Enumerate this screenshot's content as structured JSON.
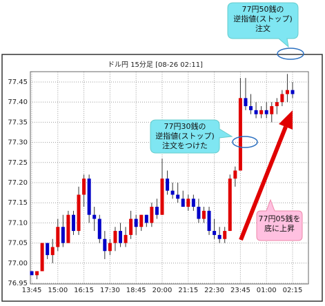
{
  "chart_data": {
    "type": "candlestick",
    "title": "ドル円 15分足 [08-26 02:11]",
    "categories": [
      "13:45",
      null,
      null,
      null,
      null,
      "15:00",
      null,
      null,
      null,
      null,
      "16:15",
      null,
      null,
      null,
      null,
      "17:30",
      null,
      null,
      null,
      null,
      "18:45",
      null,
      null,
      null,
      null,
      "20:00",
      null,
      null,
      null,
      null,
      "21:15",
      null,
      null,
      null,
      null,
      "22:30",
      null,
      null,
      null,
      null,
      "23:45",
      null,
      null,
      null,
      null,
      "01:00",
      null,
      null,
      null,
      null,
      "02:15"
    ],
    "open": [
      76.98,
      76.97,
      76.98,
      77.05,
      77.02,
      77.04,
      77.09,
      77.05,
      77.12,
      77.08,
      77.17,
      77.21,
      77.12,
      77.11,
      77.06,
      77.03,
      77.05,
      77.08,
      77.05,
      77.07,
      77.11,
      77.09,
      77.12,
      77.1,
      77.14,
      77.12,
      77.21,
      77.18,
      77.17,
      77.16,
      77.14,
      77.16,
      77.14,
      77.11,
      77.13,
      77.08,
      77.07,
      77.06,
      77.08,
      77.21,
      77.23,
      77.41,
      77.39,
      77.38,
      77.37,
      77.38,
      77.37,
      77.39,
      77.4,
      77.42,
      77.43
    ],
    "high": [
      76.98,
      76.98,
      77.05,
      77.05,
      77.06,
      77.11,
      77.12,
      77.13,
      77.13,
      77.19,
      77.22,
      77.22,
      77.14,
      77.12,
      77.08,
      77.06,
      77.09,
      77.1,
      77.09,
      77.13,
      77.12,
      77.12,
      77.12,
      77.15,
      77.16,
      77.26,
      77.23,
      77.2,
      77.2,
      77.18,
      77.17,
      77.17,
      77.16,
      77.14,
      77.14,
      77.11,
      77.09,
      77.09,
      77.22,
      77.24,
      77.46,
      77.46,
      77.42,
      77.4,
      77.39,
      77.4,
      77.4,
      77.41,
      77.43,
      77.47,
      77.45
    ],
    "low": [
      76.97,
      76.96,
      76.98,
      77.01,
      77.0,
      77.03,
      77.04,
      77.05,
      77.07,
      77.07,
      77.14,
      77.1,
      77.08,
      77.05,
      77.01,
      77.02,
      77.03,
      77.04,
      77.04,
      77.06,
      77.07,
      77.08,
      77.09,
      77.09,
      77.11,
      77.12,
      77.17,
      77.16,
      77.15,
      77.14,
      77.13,
      77.13,
      77.1,
      77.1,
      77.07,
      77.06,
      77.05,
      77.05,
      77.08,
      77.19,
      77.23,
      77.38,
      77.37,
      77.36,
      77.36,
      77.36,
      77.35,
      77.37,
      77.39,
      77.4,
      77.41
    ],
    "close": [
      76.97,
      76.98,
      77.05,
      77.02,
      77.04,
      77.09,
      77.05,
      77.12,
      77.08,
      77.17,
      77.21,
      77.12,
      77.11,
      77.06,
      77.03,
      77.05,
      77.08,
      77.05,
      77.07,
      77.11,
      77.09,
      77.12,
      77.1,
      77.14,
      77.12,
      77.21,
      77.18,
      77.17,
      77.16,
      77.14,
      77.16,
      77.14,
      77.11,
      77.13,
      77.08,
      77.07,
      77.06,
      77.08,
      77.21,
      77.23,
      77.41,
      77.39,
      77.38,
      77.37,
      77.38,
      77.37,
      77.39,
      77.4,
      77.42,
      77.43,
      77.42
    ],
    "up_color": "#e00000",
    "down_color": "#0000c8",
    "grid": true,
    "ylim": [
      76.95,
      77.47
    ],
    "yticks": [
      76.95,
      {
        "value": 77.0,
        "label": "77.00"
      },
      77.05,
      {
        "value": 77.1,
        "label": "77.10"
      },
      77.15,
      {
        "value": 77.2,
        "label": "77.20"
      },
      77.25,
      {
        "value": 77.3,
        "label": "77.30"
      },
      77.35,
      {
        "value": 77.4,
        "label": "77.40"
      },
      77.45
    ],
    "annotations": [
      {
        "lines": [
          "77円50銭の",
          "逆指値(ストップ)",
          "注文"
        ]
      },
      {
        "lines": [
          "77円30銭の",
          "逆指値(ストップ)",
          "注文をつけた"
        ]
      },
      {
        "lines": [
          "77円05銭を",
          "底に上昇"
        ]
      }
    ]
  }
}
